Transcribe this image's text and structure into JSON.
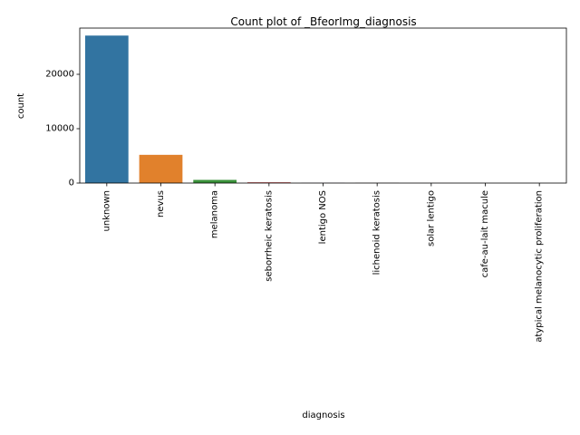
{
  "chart_data": {
    "type": "bar",
    "title": "Count plot of _BfeorImg_diagnosis",
    "xlabel": "diagnosis",
    "ylabel": "count",
    "categories": [
      "unknown",
      "nevus",
      "melanoma",
      "seborrheic keratosis",
      "lentigo NOS",
      "lichenoid keratosis",
      "solar lentigo",
      "cafe-au-lait macule",
      "atypical melanocytic proliferation"
    ],
    "values": [
      27124,
      5193,
      584,
      135,
      44,
      37,
      7,
      1,
      1
    ],
    "colors": [
      "#3274a1",
      "#e1812c",
      "#3a923a",
      "#c03d3e",
      "#9372b2",
      "#845b53",
      "#d684bd",
      "#7f7f7f",
      "#a9aa35"
    ],
    "ylim": [
      0,
      28500
    ],
    "yticks": [
      0,
      10000,
      20000
    ],
    "grid": false,
    "legend": "none"
  }
}
